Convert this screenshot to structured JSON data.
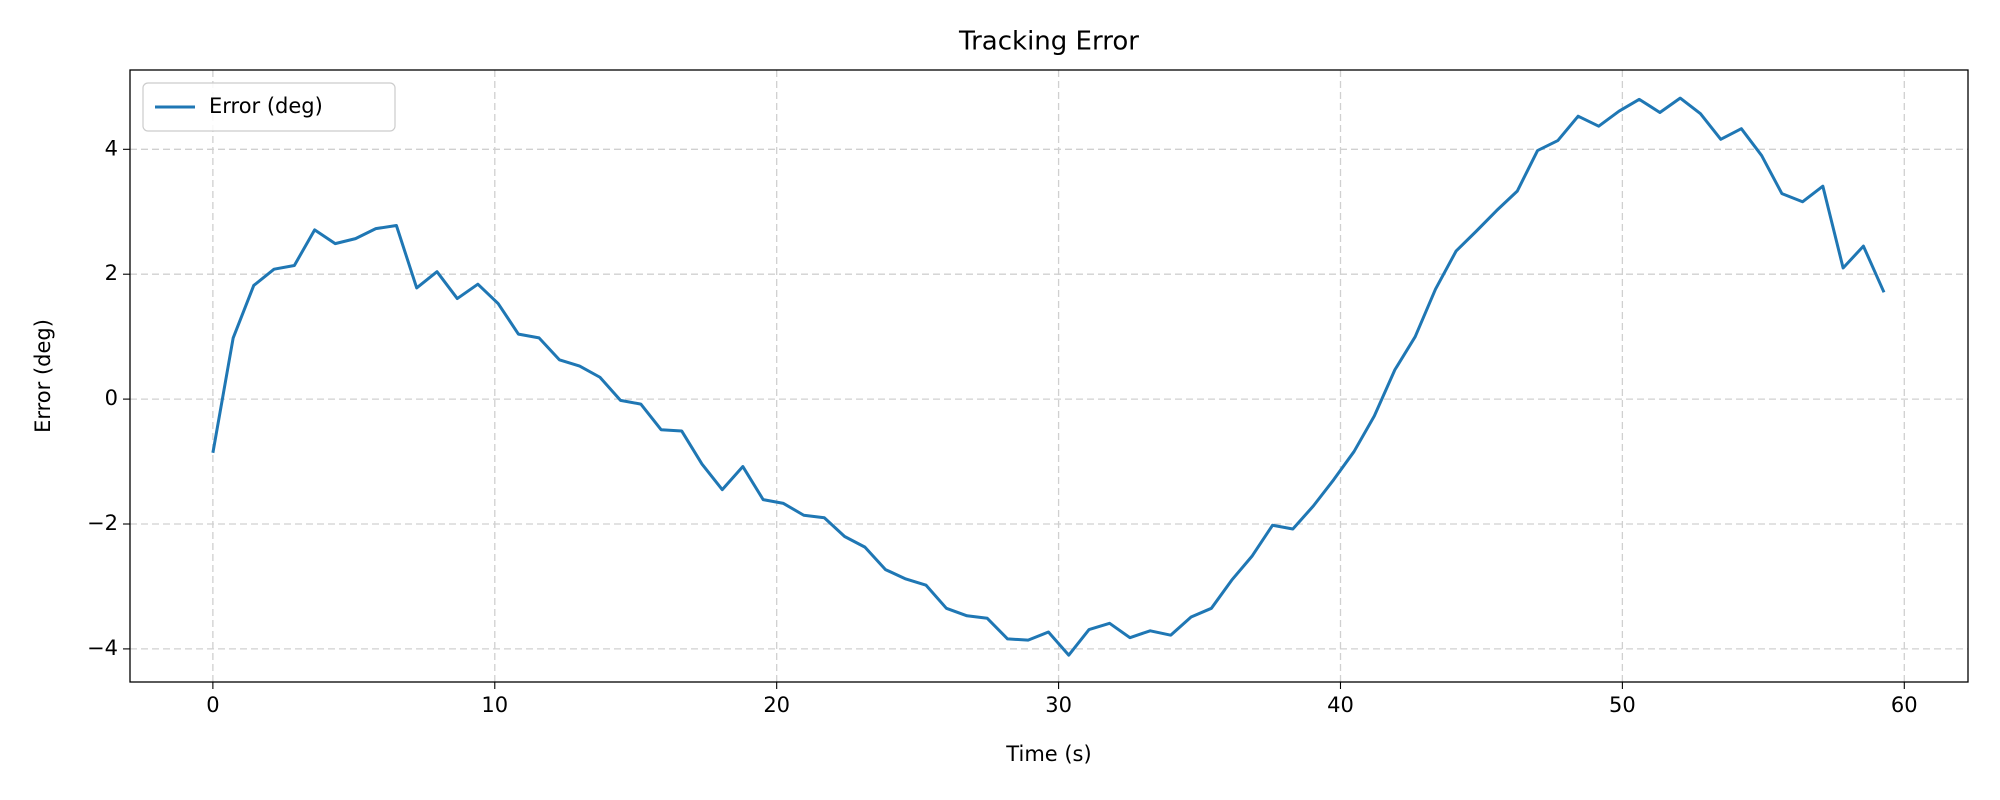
{
  "chart_data": {
    "type": "line",
    "title": "Tracking Error",
    "x_label": "Time (s)",
    "y_label": "Error (deg)",
    "x": [
      0,
      0.72,
      1.45,
      2.17,
      2.89,
      3.61,
      4.34,
      5.06,
      5.78,
      6.51,
      7.23,
      7.95,
      8.67,
      9.4,
      10.12,
      10.84,
      11.57,
      12.29,
      13.01,
      13.73,
      14.46,
      15.18,
      15.9,
      16.63,
      17.35,
      18.07,
      18.8,
      19.52,
      20.24,
      20.96,
      21.69,
      22.41,
      23.13,
      23.86,
      24.58,
      25.3,
      26.02,
      26.75,
      27.47,
      28.19,
      28.92,
      29.64,
      30.36,
      31.08,
      31.81,
      32.53,
      33.25,
      33.98,
      34.7,
      35.42,
      36.14,
      36.87,
      37.59,
      38.31,
      39.04,
      39.76,
      40.48,
      41.2,
      41.93,
      42.65,
      43.37,
      44.1,
      44.82,
      45.54,
      46.27,
      46.99,
      47.71,
      48.43,
      49.16,
      49.88,
      50.6,
      51.33,
      52.05,
      52.77,
      53.49,
      54.22,
      54.94,
      55.66,
      56.39,
      57.11,
      57.83,
      58.55,
      59.28
    ],
    "series": [
      {
        "name": "Error (deg)",
        "color": "#1f77b4",
        "values": [
          -0.86,
          0.98,
          1.82,
          2.08,
          2.14,
          2.71,
          2.49,
          2.57,
          2.73,
          2.78,
          1.78,
          2.04,
          1.61,
          1.84,
          1.53,
          1.04,
          0.98,
          0.63,
          0.53,
          0.35,
          -0.02,
          -0.08,
          -0.49,
          -0.51,
          -1.04,
          -1.45,
          -1.08,
          -1.61,
          -1.67,
          -1.86,
          -1.9,
          -2.2,
          -2.37,
          -2.73,
          -2.88,
          -2.98,
          -3.35,
          -3.47,
          -3.51,
          -3.84,
          -3.86,
          -3.73,
          -4.1,
          -3.69,
          -3.59,
          -3.82,
          -3.71,
          -3.78,
          -3.49,
          -3.35,
          -2.9,
          -2.51,
          -2.02,
          -2.08,
          -1.71,
          -1.29,
          -0.84,
          -0.27,
          0.47,
          1.0,
          1.76,
          2.37,
          2.69,
          3.02,
          3.33,
          3.98,
          4.14,
          4.53,
          4.37,
          4.61,
          4.8,
          4.59,
          4.82,
          4.57,
          4.16,
          4.33,
          3.9,
          3.29,
          3.16,
          3.41,
          2.1,
          2.45,
          1.71
        ]
      }
    ],
    "xlim": [
      -2.94,
      62.26
    ],
    "ylim": [
      -4.53,
      5.27
    ],
    "xticks": [
      0,
      10,
      20,
      30,
      40,
      50,
      60
    ],
    "yticks": [
      {
        "value": -4,
        "label": "−4"
      },
      {
        "value": -2,
        "label": "−2"
      },
      0,
      2,
      4
    ],
    "grid": true,
    "legend": "upper left"
  }
}
